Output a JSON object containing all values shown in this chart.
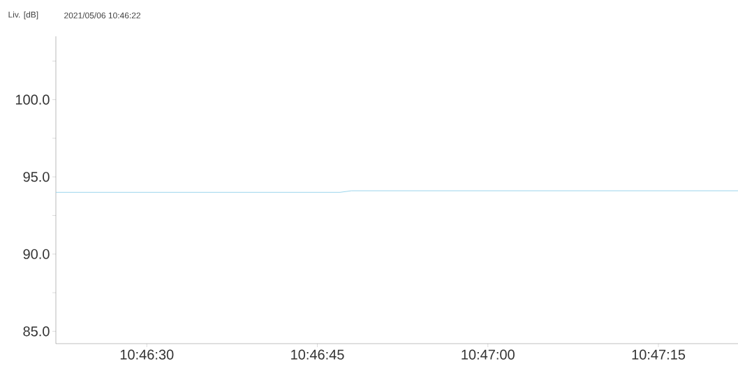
{
  "chart_data": {
    "type": "line",
    "title": "2021/05/06 10:46:22",
    "ylabel": "Liv. [dB]",
    "x": [
      10.77277778,
      10.77972222,
      10.78,
      10.78944444
    ],
    "series": [
      {
        "color": "#8fd0ea",
        "values": [
          94.0,
          94.0,
          94.1,
          94.1
        ]
      }
    ],
    "xlim": [
      10.77277778,
      10.78944444
    ],
    "xticks": [
      {
        "value": 10.775,
        "label": "10:46:30"
      },
      {
        "value": 10.77916667,
        "label": "10:46:45"
      },
      {
        "value": 10.78333333,
        "label": "10:47:00"
      },
      {
        "value": 10.7875,
        "label": "10:47:15"
      }
    ],
    "ylim": [
      84.2,
      104.1
    ],
    "yticks": [
      {
        "value": 85,
        "label": "85.0"
      },
      {
        "value": 87.5,
        "label": null
      },
      {
        "value": 90,
        "label": "90.0"
      },
      {
        "value": 92.5,
        "label": null
      },
      {
        "value": 95,
        "label": "95.0"
      },
      {
        "value": 97.5,
        "label": null
      },
      {
        "value": 100,
        "label": "100.0"
      },
      {
        "value": 102.5,
        "label": null
      }
    ],
    "grid": false,
    "marker": "none",
    "line_style": "solid"
  }
}
